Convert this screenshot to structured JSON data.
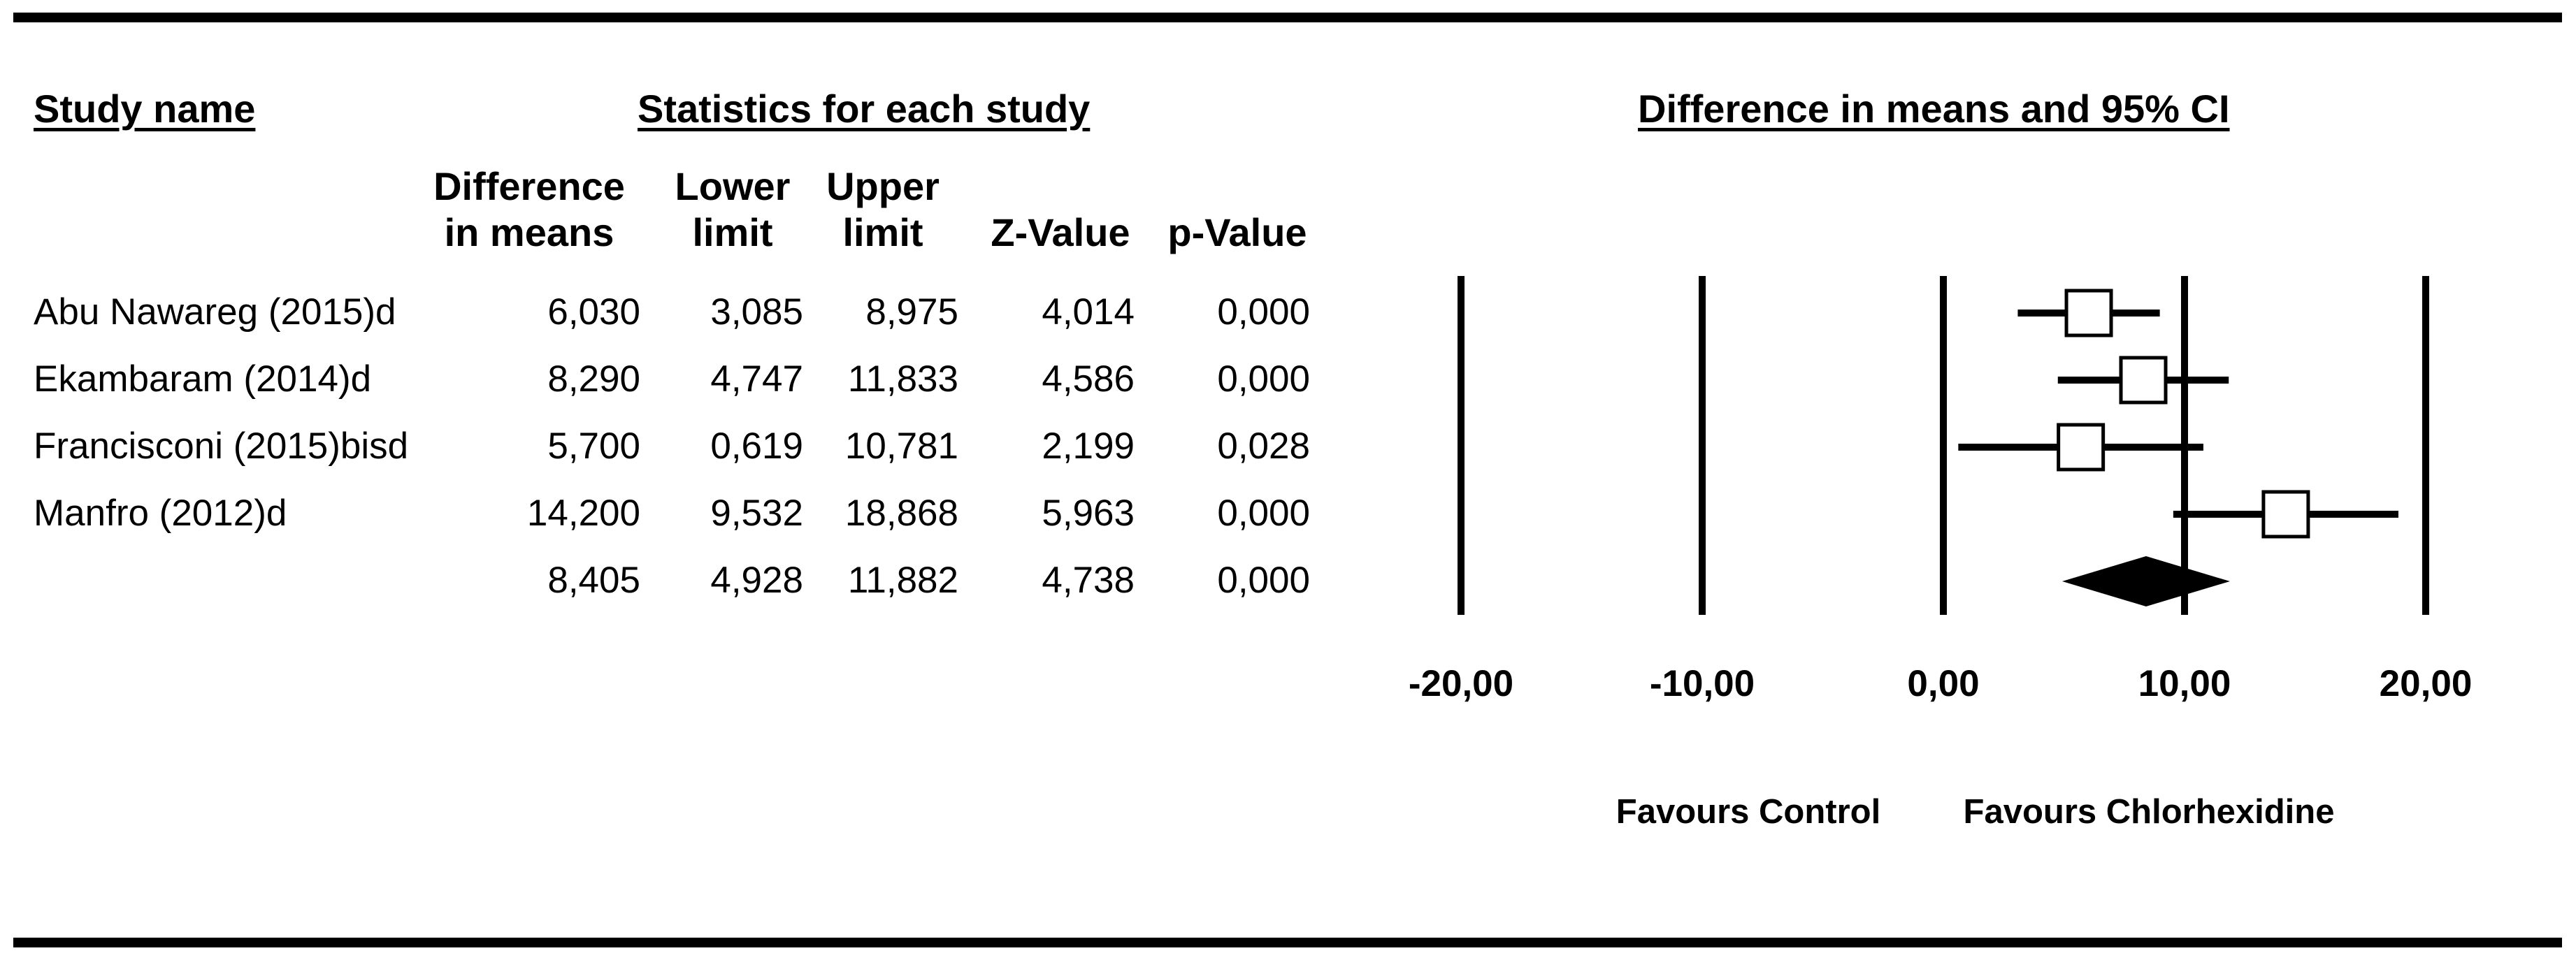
{
  "headers": {
    "study_name": "Study name",
    "statistics": "Statistics for each study",
    "plot_title": "Difference in means and 95% CI"
  },
  "columns": [
    {
      "key": "diff",
      "line1": "Difference",
      "line2": "in means"
    },
    {
      "key": "lower",
      "line1": "Lower",
      "line2": "limit"
    },
    {
      "key": "upper",
      "line1": "Upper",
      "line2": "limit"
    },
    {
      "key": "z",
      "line1": "",
      "line2": "Z-Value"
    },
    {
      "key": "p",
      "line1": "",
      "line2": "p-Value"
    }
  ],
  "rows": [
    {
      "study": "Abu Nawareg (2015)d",
      "diff": "6,030",
      "lower": "3,085",
      "upper": "8,975",
      "z": "4,014",
      "p": "0,000"
    },
    {
      "study": "Ekambaram (2014)d",
      "diff": "8,290",
      "lower": "4,747",
      "upper": "11,833",
      "z": "4,586",
      "p": "0,000"
    },
    {
      "study": "Francisconi (2015)bisd",
      "diff": "5,700",
      "lower": "0,619",
      "upper": "10,781",
      "z": "2,199",
      "p": "0,028"
    },
    {
      "study": "Manfro (2012)d",
      "diff": "14,200",
      "lower": "9,532",
      "upper": "18,868",
      "z": "5,963",
      "p": "0,000"
    },
    {
      "study": "",
      "diff": "8,405",
      "lower": "4,928",
      "upper": "11,882",
      "z": "4,738",
      "p": "0,000"
    }
  ],
  "favours": {
    "left": "Favours Control",
    "right": "Favours Chlorhexidine"
  },
  "chart_data": {
    "type": "forest",
    "title": "Difference in means and 95% CI",
    "xlim": [
      -20,
      20
    ],
    "ticks": [
      -20,
      -10,
      0,
      10,
      20
    ],
    "tick_labels": [
      "-20,00",
      "-10,00",
      "0,00",
      "10,00",
      "20,00"
    ],
    "studies": [
      {
        "name": "Abu Nawareg (2015)d",
        "estimate": 6.03,
        "lower": 3.085,
        "upper": 8.975
      },
      {
        "name": "Ekambaram (2014)d",
        "estimate": 8.29,
        "lower": 4.747,
        "upper": 11.833
      },
      {
        "name": "Francisconi (2015)bisd",
        "estimate": 5.7,
        "lower": 0.619,
        "upper": 10.781
      },
      {
        "name": "Manfro (2012)d",
        "estimate": 14.2,
        "lower": 9.532,
        "upper": 18.868
      }
    ],
    "summary": {
      "estimate": 8.405,
      "lower": 4.928,
      "upper": 11.882
    }
  }
}
